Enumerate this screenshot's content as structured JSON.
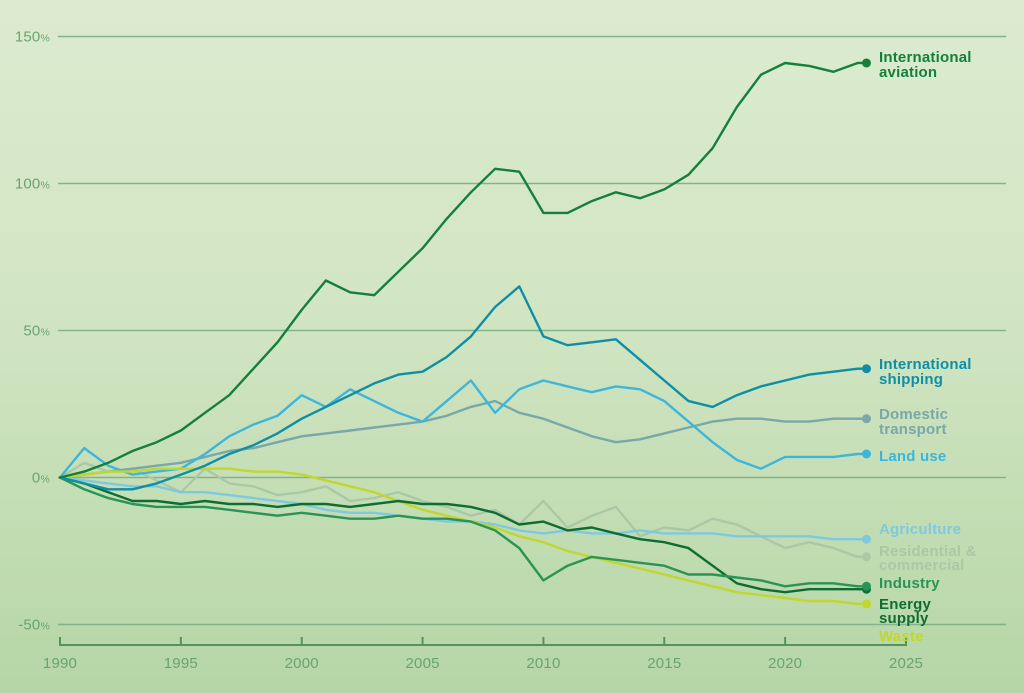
{
  "chart_data": {
    "type": "line",
    "title": "",
    "x_label": "",
    "y_label": "",
    "x": [
      1990,
      1991,
      1992,
      1993,
      1994,
      1995,
      1996,
      1997,
      1998,
      1999,
      2000,
      2001,
      2002,
      2003,
      2004,
      2005,
      2006,
      2007,
      2008,
      2009,
      2010,
      2011,
      2012,
      2013,
      2014,
      2015,
      2016,
      2017,
      2018,
      2019,
      2020,
      2021,
      2022,
      2023
    ],
    "xlim": [
      1990,
      2025
    ],
    "ylim": [
      -50,
      150
    ],
    "grid": true,
    "legend_position": "right-end-labels",
    "x_ticks": [
      {
        "value": 1990,
        "label": "1990"
      },
      {
        "value": 1995,
        "label": "1995"
      },
      {
        "value": 2000,
        "label": "2000"
      },
      {
        "value": 2005,
        "label": "2005"
      },
      {
        "value": 2010,
        "label": "2010"
      },
      {
        "value": 2015,
        "label": "2015"
      },
      {
        "value": 2020,
        "label": "2020"
      },
      {
        "value": 2025,
        "label": "2025"
      }
    ],
    "y_ticks": [
      {
        "value": 150,
        "label": "150",
        "suffix": "%"
      },
      {
        "value": 100,
        "label": "100",
        "suffix": "%"
      },
      {
        "value": 50,
        "label": "50",
        "suffix": "%"
      },
      {
        "value": 0,
        "label": "0",
        "suffix": "%"
      },
      {
        "value": -50,
        "label": "-50",
        "suffix": "%"
      }
    ],
    "series": [
      {
        "name": "International aviation",
        "label_lines": [
          "International",
          "aviation"
        ],
        "color": "#14803c",
        "values": [
          0,
          2,
          5,
          9,
          12,
          16,
          22,
          28,
          37,
          46,
          57,
          67,
          63,
          62,
          70,
          78,
          88,
          97,
          105,
          104,
          90,
          90,
          94,
          97,
          95,
          98,
          103,
          112,
          126,
          137,
          141,
          140,
          138,
          141
        ]
      },
      {
        "name": "International shipping",
        "label_lines": [
          "International",
          "shipping"
        ],
        "color": "#0e8fa6",
        "values": [
          0,
          -2,
          -4,
          -4,
          -2,
          1,
          4,
          8,
          11,
          15,
          20,
          24,
          28,
          32,
          35,
          36,
          41,
          48,
          58,
          65,
          48,
          45,
          46,
          47,
          40,
          33,
          26,
          24,
          28,
          31,
          33,
          35,
          36,
          37
        ]
      },
      {
        "name": "Domestic transport",
        "label_lines": [
          "Domestic",
          "transport"
        ],
        "color": "#78a8a8",
        "values": [
          0,
          1,
          2,
          3,
          4,
          5,
          7,
          9,
          10,
          12,
          14,
          15,
          16,
          17,
          18,
          19,
          21,
          24,
          26,
          22,
          20,
          17,
          14,
          12,
          13,
          15,
          17,
          19,
          20,
          20,
          19,
          19,
          20,
          20
        ]
      },
      {
        "name": "Land use",
        "label_lines": [
          "Land use"
        ],
        "color": "#3eb6da",
        "values": [
          0,
          10,
          4,
          1,
          2,
          3,
          8,
          14,
          18,
          21,
          28,
          24,
          30,
          26,
          22,
          19,
          26,
          33,
          22,
          30,
          33,
          31,
          29,
          31,
          30,
          26,
          19,
          12,
          6,
          3,
          7,
          7,
          7,
          8
        ]
      },
      {
        "name": "Agriculture",
        "label_lines": [
          "Agriculture"
        ],
        "color": "#7fc9e0",
        "values": [
          0,
          -1,
          -2,
          -3,
          -3,
          -5,
          -5,
          -6,
          -7,
          -8,
          -9,
          -11,
          -12,
          -12,
          -13,
          -14,
          -15,
          -15,
          -16,
          -18,
          -19,
          -18,
          -19,
          -19,
          -18,
          -19,
          -19,
          -19,
          -20,
          -20,
          -20,
          -20,
          -21,
          -21
        ]
      },
      {
        "name": "Residential & commercial",
        "label_lines": [
          "Residential &",
          "commercial"
        ],
        "color": "#abc8a6",
        "values": [
          0,
          5,
          2,
          3,
          -1,
          -5,
          3,
          -2,
          -3,
          -6,
          -5,
          -3,
          -8,
          -7,
          -5,
          -8,
          -10,
          -13,
          -11,
          -16,
          -8,
          -17,
          -13,
          -10,
          -20,
          -17,
          -18,
          -14,
          -16,
          -20,
          -24,
          -22,
          -24,
          -27
        ]
      },
      {
        "name": "Industry",
        "label_lines": [
          "Industry"
        ],
        "color": "#2a9455",
        "values": [
          0,
          -4,
          -7,
          -9,
          -10,
          -10,
          -10,
          -11,
          -12,
          -13,
          -12,
          -13,
          -14,
          -14,
          -13,
          -14,
          -14,
          -15,
          -18,
          -24,
          -35,
          -30,
          -27,
          -28,
          -29,
          -30,
          -33,
          -33,
          -34,
          -35,
          -37,
          -36,
          -36,
          -37
        ]
      },
      {
        "name": "Energy supply",
        "label_lines": [
          "Energy",
          "supply"
        ],
        "color": "#0e6d33",
        "values": [
          0,
          -2,
          -5,
          -8,
          -8,
          -9,
          -8,
          -9,
          -9,
          -10,
          -9,
          -9,
          -10,
          -9,
          -8,
          -9,
          -9,
          -10,
          -12,
          -16,
          -15,
          -18,
          -17,
          -19,
          -21,
          -22,
          -24,
          -30,
          -36,
          -38,
          -39,
          -38,
          -38,
          -38
        ]
      },
      {
        "name": "Waste",
        "label_lines": [
          "Waste"
        ],
        "color": "#c1d62e",
        "values": [
          0,
          1,
          2,
          2,
          3,
          3,
          3,
          3,
          2,
          2,
          1,
          -1,
          -3,
          -5,
          -8,
          -11,
          -13,
          -15,
          -17,
          -20,
          -22,
          -25,
          -27,
          -29,
          -31,
          -33,
          -35,
          -37,
          -39,
          -40,
          -41,
          -42,
          -42,
          -43
        ]
      }
    ]
  },
  "colors": {
    "background_top": "#dcebd0",
    "background_bottom": "#b5d6a6",
    "gridline": "#86b28a",
    "axis_line": "#54935e",
    "tick_label": "#68a471"
  }
}
